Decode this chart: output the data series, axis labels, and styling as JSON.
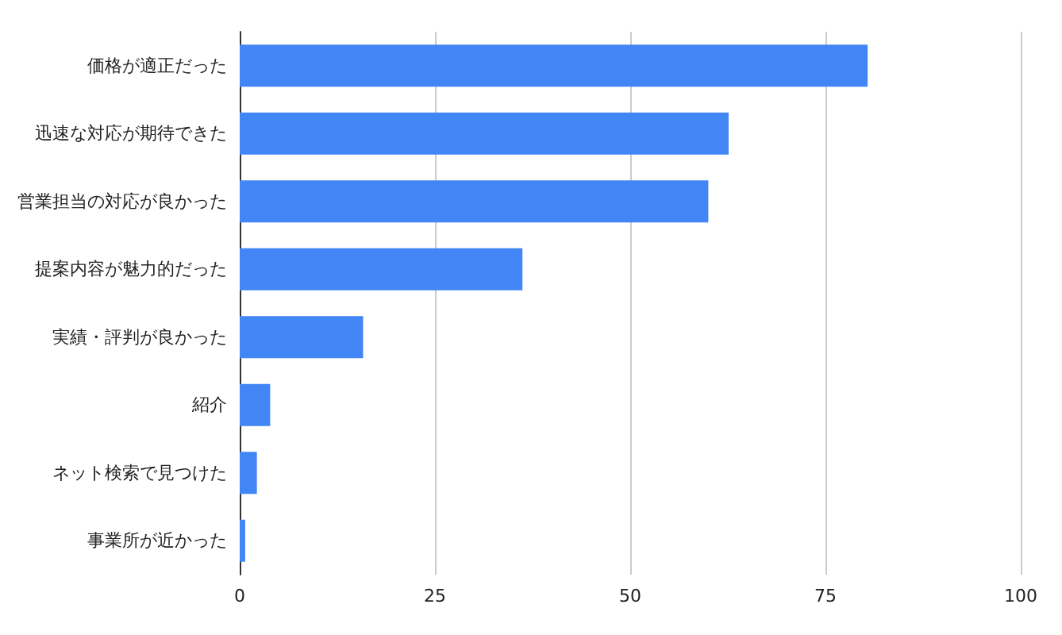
{
  "chart_data": {
    "type": "bar",
    "orientation": "horizontal",
    "categories": [
      "価格が適正だった",
      "迅速な対応が期待できた",
      "営業担当の対応が良かった",
      "提案内容が魅力的だった",
      "実績・評判が良かった",
      "紹介",
      "ネット検索で見つけた",
      "事業所が近かった"
    ],
    "values": [
      80.4,
      62.6,
      60.0,
      36.2,
      15.8,
      3.9,
      2.2,
      0.7
    ],
    "color": "#4285f4",
    "xlim": [
      0,
      100
    ],
    "xticks": [
      0,
      25,
      50,
      75,
      100
    ],
    "grid": "x"
  }
}
